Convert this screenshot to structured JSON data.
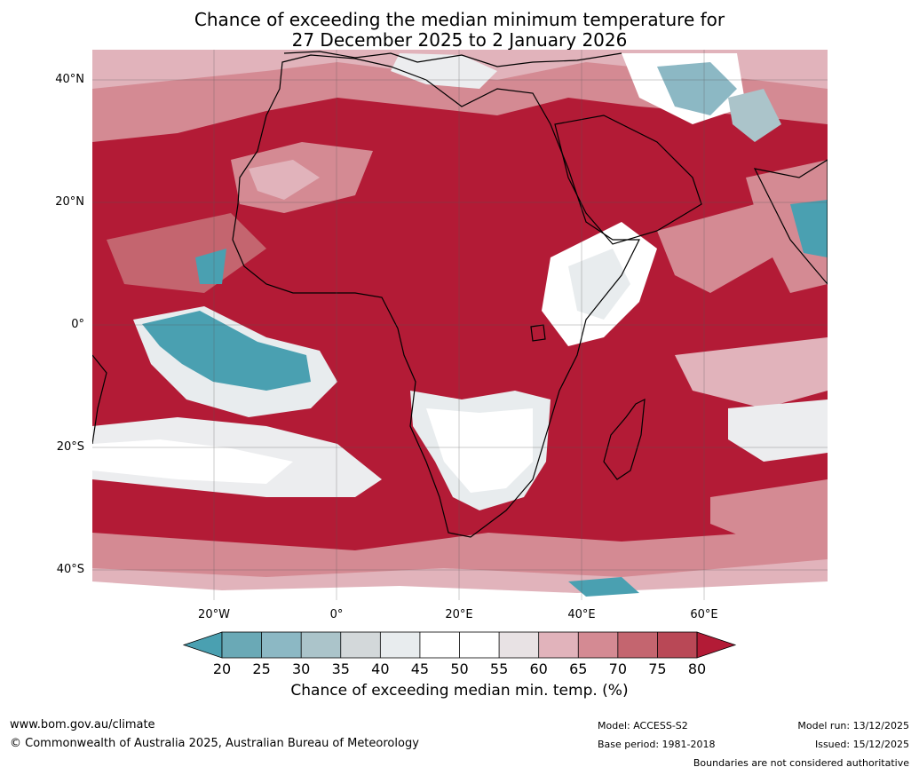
{
  "title": {
    "line1": "Chance of exceeding the median minimum temperature for",
    "line2": "27 December 2025 to 2 January 2026"
  },
  "axes": {
    "lat_labels": [
      "40°N",
      "20°N",
      "0°",
      "20°S",
      "40°S"
    ],
    "lon_labels": [
      "20°W",
      "0°",
      "20°E",
      "40°E",
      "60°E"
    ]
  },
  "colorbar": {
    "ticks": [
      "20",
      "25",
      "30",
      "35",
      "40",
      "45",
      "50",
      "55",
      "60",
      "65",
      "70",
      "75",
      "80"
    ],
    "colors": [
      "#4aa0b1",
      "#6aa9b6",
      "#8cb8c4",
      "#abc4ca",
      "#d3d8da",
      "#e8ecee",
      "#ffffff",
      "#ffffff",
      "#e8e2e4",
      "#e1b3bb",
      "#d48a93",
      "#c4656f",
      "#b94856",
      "#b31b36"
    ],
    "label": "Chance of exceeding median min. temp. (%)"
  },
  "footer": {
    "website": "www.bom.gov.au/climate",
    "copyright": "© Commonwealth of Australia 2025, Australian Bureau of Meteorology",
    "model": "Model: ACCESS-S2",
    "base_period": "Base period: 1981-2018",
    "model_run": "Model run: 13/12/2025",
    "issued": "Issued: 15/12/2025",
    "disclaimer": "Boundaries are not considered authoritative"
  }
}
